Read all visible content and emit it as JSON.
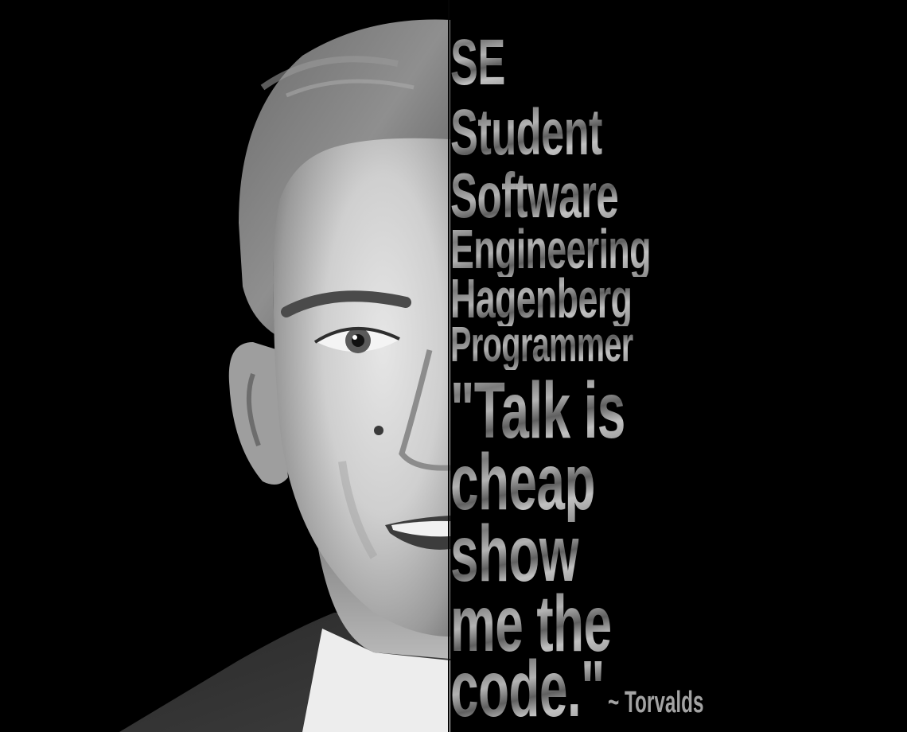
{
  "portrait": {
    "subject": "black-and-white half-face portrait of a smiling young man in a white shirt and dark jacket"
  },
  "lines": [
    "SE",
    "Student",
    "Software",
    "Engineering",
    "Hagenberg",
    "Programmer",
    "\"Talk is",
    "cheap",
    "show",
    "me the",
    "code.\""
  ],
  "attribution": "~ Torvalds",
  "colors": {
    "background": "#000000",
    "text": "#9d9d9d"
  }
}
